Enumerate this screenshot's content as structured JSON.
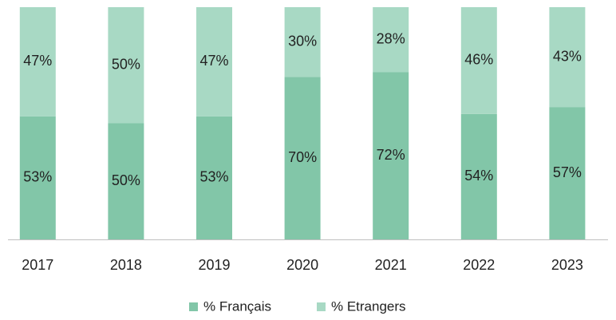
{
  "chart_data": {
    "type": "stacked_bar",
    "categories": [
      "2017",
      "2018",
      "2019",
      "2020",
      "2021",
      "2022",
      "2023"
    ],
    "series": [
      {
        "name": "% Français",
        "color": "#82c6a8",
        "values": [
          53,
          50,
          53,
          70,
          72,
          54,
          57
        ],
        "value_labels": [
          "53%",
          "50%",
          "53%",
          "70%",
          "72%",
          "54%",
          "57%"
        ]
      },
      {
        "name": "% Etrangers",
        "color": "#a8d9c4",
        "values": [
          47,
          50,
          47,
          30,
          28,
          46,
          43
        ],
        "value_labels": [
          "47%",
          "50%",
          "47%",
          "30%",
          "28%",
          "46%",
          "43%"
        ]
      }
    ],
    "ylim": [
      0,
      100
    ],
    "legend": "bottom"
  }
}
